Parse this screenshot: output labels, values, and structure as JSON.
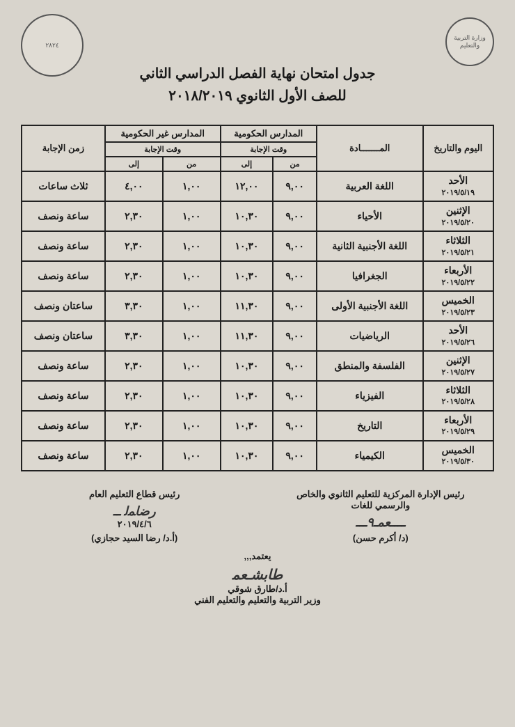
{
  "title_line1": "جدول امتحان نهاية الفصل الدراسي الثاني",
  "title_line2": "للصف الأول الثانوي ٢٠١٨/٢٠١٩",
  "stamp_left_text": "٢٨٢٤",
  "stamp_right_text": "وزارة التربية والتعليم",
  "headers": {
    "date": "اليوم والتاريخ",
    "subject": "المـــــــادة",
    "gov_schools": "المدارس الحكومية",
    "nongov_schools": "المدارس غير الحكومية",
    "answer_time_sub": "وقت الإجابة",
    "from": "من",
    "to": "إلى",
    "duration": "زمن الإجابة"
  },
  "table_style": {
    "border_color": "#222222",
    "border_width": 2,
    "bg_color": "#dcd8d0",
    "header_fontsize": 13,
    "cell_fontsize": 14,
    "font_weight": "bold"
  },
  "rows": [
    {
      "day": "الأحد",
      "date": "٢٠١٩/٥/١٩",
      "subject": "اللغة العربية",
      "gov_from": "٩,٠٠",
      "gov_to": "١٢,٠٠",
      "ng_from": "١,٠٠",
      "ng_to": "٤,٠٠",
      "duration": "ثلاث ساعات"
    },
    {
      "day": "الإثنين",
      "date": "٢٠١٩/٥/٢٠",
      "subject": "الأحياء",
      "gov_from": "٩,٠٠",
      "gov_to": "١٠,٣٠",
      "ng_from": "١,٠٠",
      "ng_to": "٢,٣٠",
      "duration": "ساعة ونصف"
    },
    {
      "day": "الثلاثاء",
      "date": "٢٠١٩/٥/٢١",
      "subject": "اللغة الأجنبية الثانية",
      "gov_from": "٩,٠٠",
      "gov_to": "١٠,٣٠",
      "ng_from": "١,٠٠",
      "ng_to": "٢,٣٠",
      "duration": "ساعة ونصف"
    },
    {
      "day": "الأربعاء",
      "date": "٢٠١٩/٥/٢٢",
      "subject": "الجغرافيا",
      "gov_from": "٩,٠٠",
      "gov_to": "١٠,٣٠",
      "ng_from": "١,٠٠",
      "ng_to": "٢,٣٠",
      "duration": "ساعة ونصف"
    },
    {
      "day": "الخميس",
      "date": "٢٠١٩/٥/٢٣",
      "subject": "اللغة الأجنبية الأولى",
      "gov_from": "٩,٠٠",
      "gov_to": "١١,٣٠",
      "ng_from": "١,٠٠",
      "ng_to": "٣,٣٠",
      "duration": "ساعتان ونصف"
    },
    {
      "day": "الأحد",
      "date": "٢٠١٩/٥/٢٦",
      "subject": "الرياضيات",
      "gov_from": "٩,٠٠",
      "gov_to": "١١,٣٠",
      "ng_from": "١,٠٠",
      "ng_to": "٣,٣٠",
      "duration": "ساعتان ونصف"
    },
    {
      "day": "الإثنين",
      "date": "٢٠١٩/٥/٢٧",
      "subject": "الفلسفة والمنطق",
      "gov_from": "٩,٠٠",
      "gov_to": "١٠,٣٠",
      "ng_from": "١,٠٠",
      "ng_to": "٢,٣٠",
      "duration": "ساعة ونصف"
    },
    {
      "day": "الثلاثاء",
      "date": "٢٠١٩/٥/٢٨",
      "subject": "الفيزياء",
      "gov_from": "٩,٠٠",
      "gov_to": "١٠,٣٠",
      "ng_from": "١,٠٠",
      "ng_to": "٢,٣٠",
      "duration": "ساعة ونصف"
    },
    {
      "day": "الأربعاء",
      "date": "٢٠١٩/٥/٢٩",
      "subject": "التاريخ",
      "gov_from": "٩,٠٠",
      "gov_to": "١٠,٣٠",
      "ng_from": "١,٠٠",
      "ng_to": "٢,٣٠",
      "duration": "ساعة ونصف"
    },
    {
      "day": "الخميس",
      "date": "٢٠١٩/٥/٣٠",
      "subject": "الكيمياء",
      "gov_from": "٩,٠٠",
      "gov_to": "١٠,٣٠",
      "ng_from": "١,٠٠",
      "ng_to": "٢,٣٠",
      "duration": "ساعة ونصف"
    }
  ],
  "signatures": {
    "right_title": "رئيس الإدارة المركزية للتعليم الثانوي والخاص",
    "right_sub": "والرسمي للغات",
    "right_name": "(د/ أكرم حسن)",
    "left_title": "رئيس قطاع التعليم العام",
    "left_date": "٢٠١٩/٤/٦",
    "left_name": "(أ.د/ رضا السيد حجازي)",
    "minister_intro": "يعتمد,,,",
    "minister_name": "أ.د/طارق شوقي",
    "minister_title": "وزير التربية والتعليم والتعليم الفني"
  },
  "page_bg": "#d8d4cc"
}
